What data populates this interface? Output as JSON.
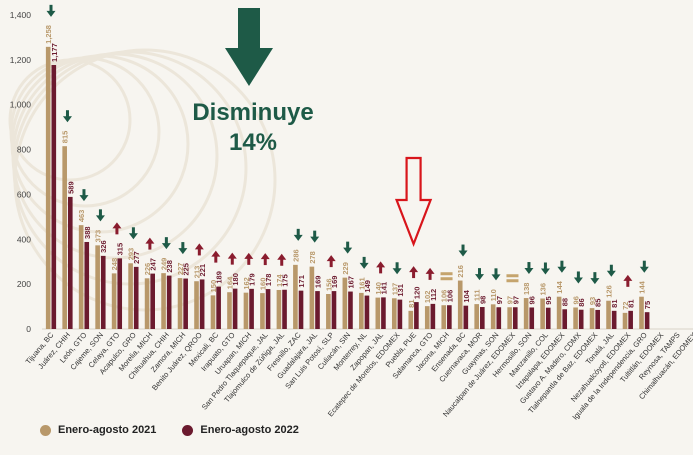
{
  "chart_data": {
    "type": "bar",
    "ylim": [
      0,
      1400
    ],
    "yticks": [
      0,
      200,
      400,
      600,
      800,
      "1,000",
      "1,200",
      "1,400"
    ],
    "headline": {
      "line1": "Disminuye",
      "line2": "14%"
    },
    "colors": {
      "series_2021": "#b8986a",
      "series_2022": "#6b1a2e",
      "arrow_down": "#1e5a47",
      "arrow_up": "#8a1c2e",
      "equal": "#c5a46d",
      "highlight_arrow": "#d8151b"
    },
    "series": [
      {
        "name": "Enero-agosto 2021"
      },
      {
        "name": "Enero-agosto 2022"
      }
    ],
    "items": [
      {
        "category": "Tijuana, BC",
        "v2021": 1258,
        "v2022": 1177,
        "t": "down"
      },
      {
        "category": "Juárez, CHIH",
        "v2021": 815,
        "v2022": 589,
        "t": "down"
      },
      {
        "category": "León, GTO",
        "v2021": 463,
        "v2022": 388,
        "t": "down"
      },
      {
        "category": "Cajeme, SON",
        "v2021": 373,
        "v2022": 326,
        "t": "down"
      },
      {
        "category": "Celaya, GTO",
        "v2021": 248,
        "v2022": 315,
        "t": "up"
      },
      {
        "category": "Acapulco, GRO",
        "v2021": 293,
        "v2022": 277,
        "t": "down"
      },
      {
        "category": "Morelia, MICH",
        "v2021": 226,
        "v2022": 247,
        "t": "up"
      },
      {
        "category": "Chihuahua, CHIH",
        "v2021": 249,
        "v2022": 238,
        "t": "down"
      },
      {
        "category": "Zamora, MICH",
        "v2021": 227,
        "v2022": 225,
        "t": "down"
      },
      {
        "category": "Benito Juárez, QROO",
        "v2021": 213,
        "v2022": 221,
        "t": "up"
      },
      {
        "category": "Mexicali, BC",
        "v2021": 150,
        "v2022": 189,
        "t": "up"
      },
      {
        "category": "Irapuato, GTO",
        "v2021": 164,
        "v2022": 180,
        "t": "up"
      },
      {
        "category": "Uruapan, MICH",
        "v2021": 162,
        "v2022": 179,
        "t": "up"
      },
      {
        "category": "San Pedro Tlaquepaque, JAL",
        "v2021": 160,
        "v2022": 178,
        "t": "up"
      },
      {
        "category": "Tlajomulco de Zúñiga, JAL",
        "v2021": 174,
        "v2022": 175,
        "t": "up"
      },
      {
        "category": "Fresnillo, ZAC",
        "v2021": 286,
        "v2022": 171,
        "t": "down"
      },
      {
        "category": "Guadalajara, JAL",
        "v2021": 278,
        "v2022": 169,
        "t": "down"
      },
      {
        "category": "San Luis Potosí, SLP",
        "v2021": 156,
        "v2022": 169,
        "t": "up"
      },
      {
        "category": "Culiacán, SIN",
        "v2021": 229,
        "v2022": 167,
        "t": "down"
      },
      {
        "category": "Monterrey, NL",
        "v2021": 161,
        "v2022": 149,
        "t": "down"
      },
      {
        "category": "Zapopan, JAL",
        "v2021": 140,
        "v2022": 141,
        "t": "up"
      },
      {
        "category": "Ecatepec de Morelos, EDOMEX",
        "v2021": 137,
        "v2022": 131,
        "t": "down"
      },
      {
        "category": "Puebla, PUE",
        "v2021": 81,
        "v2022": 120,
        "t": "up"
      },
      {
        "category": "Salamanca, GTO",
        "v2021": 102,
        "v2022": 112,
        "t": "up"
      },
      {
        "category": "Jacona, MICH",
        "v2021": 106,
        "v2022": 106,
        "t": "equal"
      },
      {
        "category": "Ensenada, BC",
        "v2021": 216,
        "v2022": 104,
        "t": "down"
      },
      {
        "category": "Cuernavaca, MOR",
        "v2021": 111,
        "v2022": 98,
        "t": "down"
      },
      {
        "category": "Guaymas, SON",
        "v2021": 110,
        "v2022": 97,
        "t": "down"
      },
      {
        "category": "Naucalpan de Juárez, EDOMEX",
        "v2021": 97,
        "v2022": 97,
        "t": "equal"
      },
      {
        "category": "Hermosillo, SON",
        "v2021": 138,
        "v2022": 96,
        "t": "down"
      },
      {
        "category": "Manzanillo, COL",
        "v2021": 136,
        "v2022": 95,
        "t": "down"
      },
      {
        "category": "Iztapalapa, EDOMEX",
        "v2021": 144,
        "v2022": 88,
        "t": "down"
      },
      {
        "category": "Gustavo A. Madero, CDMX",
        "v2021": 96,
        "v2022": 86,
        "t": "down"
      },
      {
        "category": "Tlalnepantla de Baz, EDOMEX",
        "v2021": 93,
        "v2022": 85,
        "t": "down"
      },
      {
        "category": "Tonalá, JAL",
        "v2021": 126,
        "v2022": 81,
        "t": "down"
      },
      {
        "category": "Nezahualcóyotl, EDOMEX",
        "v2021": 72,
        "v2022": 81,
        "t": "up"
      },
      {
        "category": "Iguala de la Independencia, GRO",
        "v2021": 144,
        "v2022": 75,
        "t": "down"
      },
      {
        "category": "Tultitlán, EDOMEX",
        "v2021": 0,
        "v2022": 0,
        "t": ""
      },
      {
        "category": "Reynosa, TAMPS",
        "v2021": 0,
        "v2022": 0,
        "t": ""
      },
      {
        "category": "Chimalhuacán, EDOMEX",
        "v2021": 0,
        "v2022": 0,
        "t": ""
      }
    ]
  }
}
